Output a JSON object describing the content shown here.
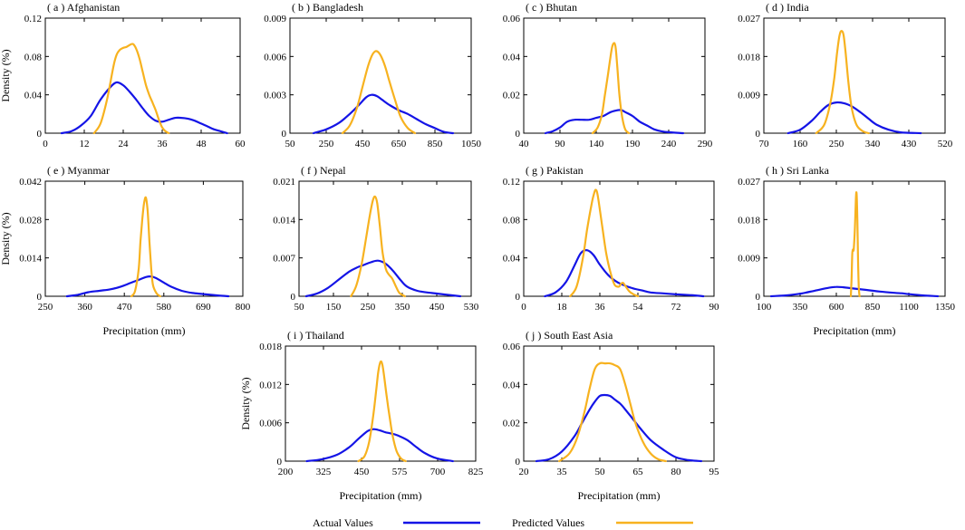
{
  "colors": {
    "actual": "#1414e6",
    "predicted": "#f7b21f",
    "axis": "#000000"
  },
  "legend": [
    {
      "label": "Actual Values",
      "series": "actual"
    },
    {
      "label": "Predicted Values",
      "series": "predicted"
    }
  ],
  "chart_data": [
    {
      "type": "line",
      "title": "( a ) Afghanistan",
      "xlabel": "",
      "ylabel": "Density (%)",
      "xlim": [
        0,
        60
      ],
      "ylim": [
        0,
        0.12
      ],
      "xticks": [
        "0",
        "12",
        "24",
        "36",
        "48",
        "60"
      ],
      "yticks": [
        "0",
        "0.04",
        "0.08",
        "0.12"
      ],
      "series": [
        {
          "name": "Actual Values",
          "x": [
            5,
            8,
            11,
            14,
            17,
            20,
            22,
            24,
            26,
            28,
            30,
            32,
            34,
            36,
            38,
            40,
            42,
            44,
            46,
            48,
            50,
            52,
            54,
            56
          ],
          "y": [
            0,
            0.002,
            0.008,
            0.018,
            0.035,
            0.048,
            0.053,
            0.05,
            0.043,
            0.035,
            0.026,
            0.018,
            0.013,
            0.012,
            0.014,
            0.016,
            0.016,
            0.015,
            0.013,
            0.01,
            0.007,
            0.004,
            0.002,
            0
          ]
        },
        {
          "name": "Predicted Values",
          "x": [
            15,
            17,
            19,
            21,
            22,
            23,
            24,
            25,
            26,
            27,
            28,
            29,
            30,
            31,
            32,
            33,
            34,
            35,
            36,
            37,
            38
          ],
          "y": [
            0,
            0.01,
            0.035,
            0.07,
            0.082,
            0.087,
            0.089,
            0.09,
            0.092,
            0.093,
            0.088,
            0.078,
            0.064,
            0.05,
            0.04,
            0.032,
            0.024,
            0.014,
            0.006,
            0.002,
            0
          ]
        }
      ]
    },
    {
      "type": "line",
      "title": "( b ) Bangladesh",
      "xlabel": "",
      "ylabel": "",
      "xlim": [
        50,
        1050
      ],
      "ylim": [
        0,
        0.009
      ],
      "xticks": [
        "50",
        "250",
        "450",
        "650",
        "850",
        "1050"
      ],
      "yticks": [
        "0",
        "0.003",
        "0.006",
        "0.009"
      ],
      "series": [
        {
          "name": "Actual Values",
          "x": [
            180,
            250,
            320,
            380,
            430,
            470,
            500,
            530,
            560,
            600,
            650,
            700,
            750,
            800,
            850,
            900,
            950
          ],
          "y": [
            0,
            0.0003,
            0.0008,
            0.0015,
            0.0022,
            0.0028,
            0.003,
            0.0029,
            0.0026,
            0.0022,
            0.0018,
            0.0015,
            0.0011,
            0.0007,
            0.0004,
            0.0001,
            0
          ]
        },
        {
          "name": "Predicted Values",
          "x": [
            340,
            380,
            420,
            450,
            480,
            500,
            520,
            540,
            560,
            580,
            600,
            630,
            660,
            700,
            740
          ],
          "y": [
            0,
            0.0006,
            0.002,
            0.0036,
            0.0052,
            0.006,
            0.0064,
            0.0063,
            0.0058,
            0.005,
            0.004,
            0.0026,
            0.0013,
            0.0004,
            0
          ]
        }
      ]
    },
    {
      "type": "line",
      "title": "( c ) Bhutan",
      "xlabel": "",
      "ylabel": "",
      "xlim": [
        40,
        290
      ],
      "ylim": [
        0,
        0.06
      ],
      "xticks": [
        "40",
        "90",
        "140",
        "190",
        "240",
        "290"
      ],
      "yticks": [
        "0",
        "0.02",
        "0.04",
        "0.06"
      ],
      "series": [
        {
          "name": "Actual Values",
          "x": [
            70,
            80,
            90,
            100,
            110,
            120,
            130,
            140,
            150,
            160,
            170,
            175,
            180,
            190,
            200,
            210,
            220,
            230,
            240,
            260
          ],
          "y": [
            0,
            0.001,
            0.003,
            0.006,
            0.007,
            0.007,
            0.007,
            0.008,
            0.009,
            0.011,
            0.012,
            0.012,
            0.011,
            0.009,
            0.006,
            0.004,
            0.002,
            0.001,
            0.0005,
            0
          ]
        },
        {
          "name": "Predicted Values",
          "x": [
            135,
            142,
            148,
            152,
            156,
            159,
            162,
            165,
            167,
            169,
            172,
            176,
            180,
            185
          ],
          "y": [
            0,
            0.003,
            0.01,
            0.02,
            0.03,
            0.038,
            0.045,
            0.047,
            0.044,
            0.035,
            0.02,
            0.008,
            0.002,
            0
          ]
        }
      ]
    },
    {
      "type": "line",
      "title": "( d ) India",
      "xlabel": "",
      "ylabel": "",
      "xlim": [
        70,
        520
      ],
      "ylim": [
        0,
        0.027
      ],
      "xticks": [
        "70",
        "160",
        "250",
        "340",
        "430",
        "520"
      ],
      "yticks": [
        "0",
        "0.009",
        "0.018",
        "0.027"
      ],
      "series": [
        {
          "name": "Actual Values",
          "x": [
            130,
            160,
            190,
            210,
            230,
            250,
            270,
            290,
            310,
            330,
            350,
            380,
            410,
            460
          ],
          "y": [
            0,
            0.0008,
            0.003,
            0.005,
            0.0066,
            0.0072,
            0.007,
            0.0062,
            0.0049,
            0.0034,
            0.002,
            0.0008,
            0.0002,
            0
          ]
        },
        {
          "name": "Predicted Values",
          "x": [
            200,
            220,
            235,
            245,
            252,
            258,
            263,
            268,
            273,
            280,
            288,
            300,
            315,
            330
          ],
          "y": [
            0,
            0.002,
            0.007,
            0.013,
            0.019,
            0.023,
            0.024,
            0.023,
            0.019,
            0.012,
            0.006,
            0.002,
            0.0005,
            0
          ]
        }
      ]
    },
    {
      "type": "line",
      "title": "( e ) Myanmar",
      "xlabel": "Precipitation (mm)",
      "ylabel": "Density (%)",
      "xlim": [
        250,
        800
      ],
      "ylim": [
        0,
        0.042
      ],
      "xticks": [
        "250",
        "360",
        "470",
        "580",
        "690",
        "800"
      ],
      "yticks": [
        "0",
        "0.014",
        "0.028",
        "0.042"
      ],
      "series": [
        {
          "name": "Actual Values",
          "x": [
            310,
            340,
            370,
            400,
            430,
            460,
            490,
            510,
            530,
            545,
            560,
            580,
            600,
            630,
            660,
            690,
            730,
            760
          ],
          "y": [
            0,
            0.0005,
            0.0015,
            0.002,
            0.0025,
            0.0035,
            0.005,
            0.006,
            0.007,
            0.0072,
            0.0065,
            0.005,
            0.0035,
            0.002,
            0.0012,
            0.0008,
            0.0003,
            0
          ]
        },
        {
          "name": "Predicted Values",
          "x": [
            490,
            500,
            510,
            515,
            520,
            525,
            530,
            535,
            540,
            545,
            550,
            560,
            570
          ],
          "y": [
            0,
            0.002,
            0.01,
            0.02,
            0.028,
            0.034,
            0.036,
            0.031,
            0.02,
            0.01,
            0.004,
            0.001,
            0
          ]
        }
      ]
    },
    {
      "type": "line",
      "title": "( f ) Nepal",
      "xlabel": "",
      "ylabel": "",
      "xlim": [
        50,
        530
      ],
      "ylim": [
        0,
        0.021
      ],
      "xticks": [
        "50",
        "150",
        "250",
        "350",
        "450",
        "530"
      ],
      "yticks": [
        "0",
        "0.007",
        "0.014",
        "0.021"
      ],
      "series": [
        {
          "name": "Actual Values",
          "x": [
            70,
            100,
            130,
            160,
            190,
            210,
            230,
            250,
            270,
            290,
            310,
            330,
            350,
            380,
            420,
            460,
            500
          ],
          "y": [
            0,
            0.0005,
            0.0015,
            0.003,
            0.0045,
            0.0052,
            0.0057,
            0.0062,
            0.0065,
            0.006,
            0.0048,
            0.0032,
            0.0018,
            0.001,
            0.0006,
            0.0003,
            0
          ]
        },
        {
          "name": "Predicted Values",
          "x": [
            195,
            210,
            225,
            238,
            248,
            256,
            262,
            268,
            275,
            283,
            292,
            300,
            310,
            320,
            330,
            345
          ],
          "y": [
            0,
            0.002,
            0.006,
            0.011,
            0.015,
            0.0175,
            0.0182,
            0.017,
            0.013,
            0.008,
            0.005,
            0.004,
            0.0032,
            0.0018,
            0.0006,
            0
          ]
        }
      ]
    },
    {
      "type": "line",
      "title": "( g ) Pakistan",
      "xlabel": "",
      "ylabel": "",
      "xlim": [
        0,
        90
      ],
      "ylim": [
        0,
        0.12
      ],
      "xticks": [
        "0",
        "18",
        "36",
        "54",
        "72",
        "90"
      ],
      "yticks": [
        "0",
        "0.04",
        "0.08",
        "0.12"
      ],
      "series": [
        {
          "name": "Actual Values",
          "x": [
            10,
            15,
            20,
            24,
            27,
            30,
            33,
            36,
            40,
            44,
            48,
            52,
            56,
            60,
            66,
            72,
            80,
            85
          ],
          "y": [
            0,
            0.004,
            0.015,
            0.032,
            0.045,
            0.048,
            0.043,
            0.033,
            0.022,
            0.015,
            0.011,
            0.008,
            0.006,
            0.004,
            0.003,
            0.002,
            0.001,
            0
          ]
        },
        {
          "name": "Predicted Values",
          "x": [
            22,
            25,
            28,
            30,
            32,
            33,
            34,
            35,
            37,
            39,
            41,
            43,
            45,
            46,
            47,
            48,
            50,
            52,
            54
          ],
          "y": [
            0,
            0.01,
            0.04,
            0.07,
            0.095,
            0.105,
            0.111,
            0.105,
            0.075,
            0.045,
            0.025,
            0.012,
            0.01,
            0.013,
            0.014,
            0.011,
            0.005,
            0.002,
            0
          ]
        }
      ]
    },
    {
      "type": "line",
      "title": "( h ) Sri Lanka",
      "xlabel": "Precipitation (mm)",
      "ylabel": "",
      "xlim": [
        100,
        1350
      ],
      "ylim": [
        0,
        0.027
      ],
      "xticks": [
        "100",
        "350",
        "600",
        "850",
        "1100",
        "1350"
      ],
      "yticks": [
        "0",
        "0.009",
        "0.018",
        "0.027"
      ],
      "series": [
        {
          "name": "Actual Values",
          "x": [
            150,
            250,
            350,
            450,
            550,
            600,
            650,
            700,
            800,
            900,
            1000,
            1050,
            1100,
            1200,
            1300
          ],
          "y": [
            0,
            0.0002,
            0.0006,
            0.0013,
            0.002,
            0.0022,
            0.0021,
            0.0019,
            0.0015,
            0.0011,
            0.0008,
            0.0007,
            0.0005,
            0.0002,
            0
          ]
        },
        {
          "name": "Predicted Values",
          "x": [
            700,
            705,
            710,
            715,
            720,
            728,
            735,
            740,
            745,
            750,
            755,
            760
          ],
          "y": [
            0,
            0.004,
            0.01,
            0.011,
            0.011,
            0.016,
            0.023,
            0.024,
            0.018,
            0.008,
            0.002,
            0
          ]
        }
      ]
    },
    {
      "type": "line",
      "title": "( i ) Thailand",
      "xlabel": "Precipitation (mm)",
      "ylabel": "Density (%)",
      "xlim": [
        200,
        825
      ],
      "ylim": [
        0,
        0.018
      ],
      "xticks": [
        "200",
        "325",
        "450",
        "575",
        "700",
        "825"
      ],
      "yticks": [
        "0",
        "0.006",
        "0.012",
        "0.018"
      ],
      "series": [
        {
          "name": "Actual Values",
          "x": [
            270,
            320,
            370,
            410,
            440,
            470,
            490,
            510,
            530,
            550,
            570,
            600,
            630,
            660,
            700,
            750
          ],
          "y": [
            0,
            0.0003,
            0.001,
            0.0022,
            0.0035,
            0.0047,
            0.005,
            0.0048,
            0.0045,
            0.0043,
            0.004,
            0.0033,
            0.0022,
            0.0012,
            0.0004,
            0
          ]
        },
        {
          "name": "Predicted Values",
          "x": [
            440,
            460,
            475,
            488,
            498,
            505,
            512,
            518,
            525,
            533,
            542,
            552,
            565,
            580,
            595
          ],
          "y": [
            0,
            0.0008,
            0.003,
            0.007,
            0.011,
            0.014,
            0.0155,
            0.0152,
            0.013,
            0.01,
            0.007,
            0.004,
            0.0016,
            0.0004,
            0
          ]
        }
      ]
    },
    {
      "type": "line",
      "title": "( j ) South East Asia",
      "xlabel": "Precipitation (mm)",
      "ylabel": "",
      "xlim": [
        20,
        95
      ],
      "ylim": [
        0,
        0.06
      ],
      "xticks": [
        "20",
        "35",
        "50",
        "65",
        "80",
        "95"
      ],
      "yticks": [
        "0",
        "0.02",
        "0.04",
        "0.06"
      ],
      "series": [
        {
          "name": "Actual Values",
          "x": [
            25,
            30,
            35,
            40,
            43,
            46,
            48,
            50,
            52,
            54,
            56,
            58,
            60,
            63,
            66,
            70,
            75,
            80,
            85,
            90
          ],
          "y": [
            0,
            0.001,
            0.005,
            0.013,
            0.02,
            0.027,
            0.031,
            0.034,
            0.0345,
            0.034,
            0.032,
            0.03,
            0.027,
            0.022,
            0.017,
            0.011,
            0.006,
            0.002,
            0.0005,
            0
          ]
        },
        {
          "name": "Predicted Values",
          "x": [
            34,
            38,
            41,
            44,
            46,
            48,
            50,
            52,
            54,
            56,
            58,
            60,
            62,
            64,
            67,
            70,
            73,
            76
          ],
          "y": [
            0,
            0.004,
            0.012,
            0.026,
            0.038,
            0.048,
            0.051,
            0.051,
            0.051,
            0.05,
            0.048,
            0.04,
            0.03,
            0.02,
            0.01,
            0.004,
            0.001,
            0
          ]
        }
      ]
    }
  ]
}
